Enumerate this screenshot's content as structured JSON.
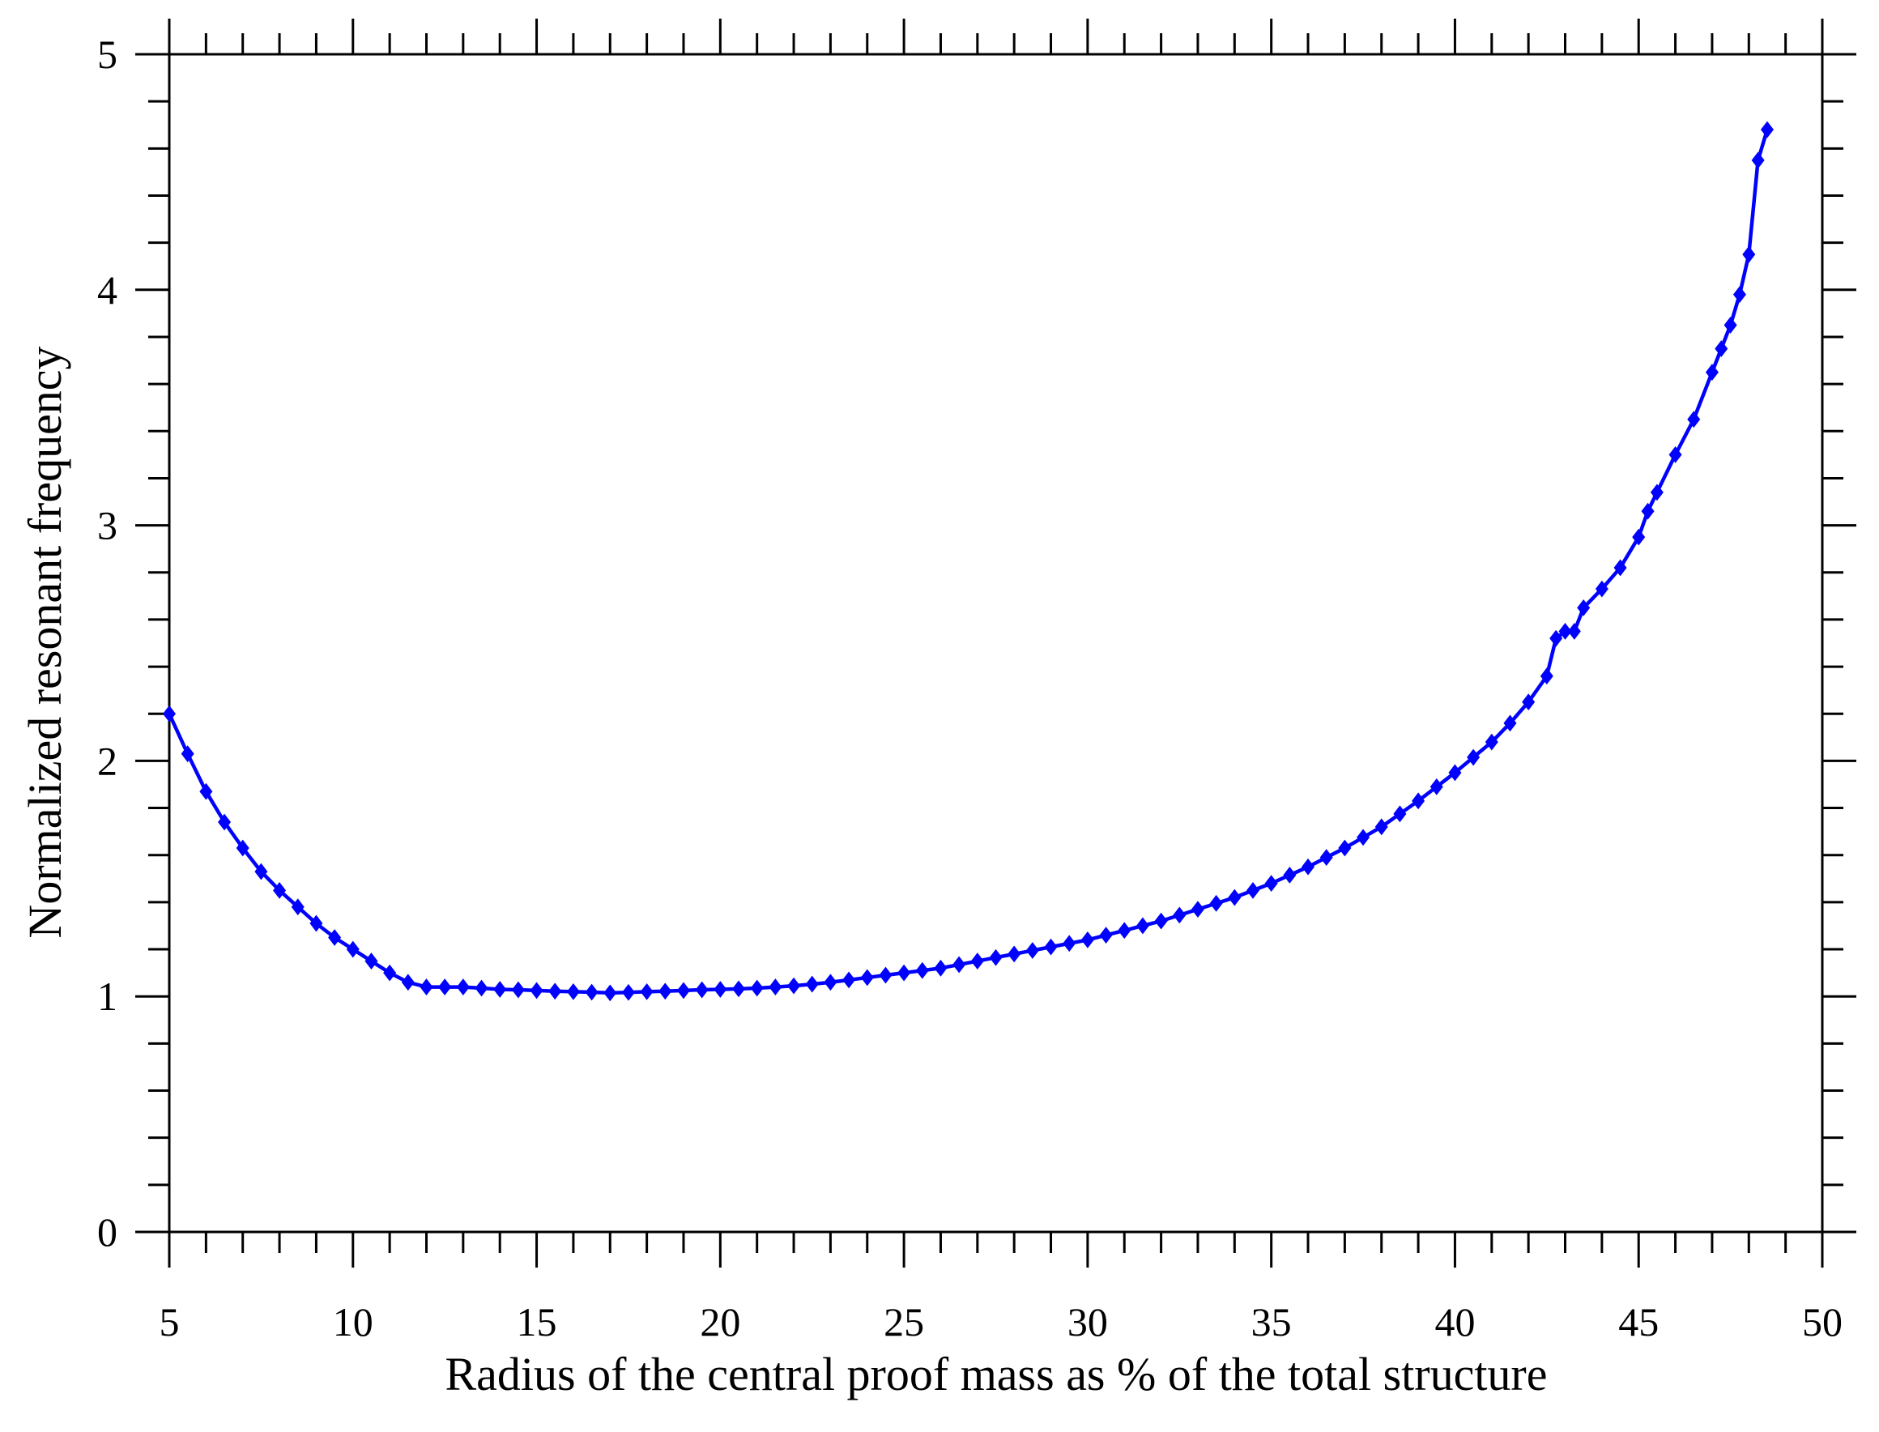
{
  "chart_data": {
    "type": "line",
    "xlabel": "Radius of the central proof mass as % of the total structure",
    "ylabel": "Normalized resonant frequency",
    "x": [
      5,
      5.5,
      6,
      6.5,
      7,
      7.5,
      8,
      8.5,
      9,
      9.5,
      10,
      10.5,
      11,
      11.5,
      12,
      12.5,
      13,
      13.5,
      14,
      14.5,
      15,
      15.5,
      16,
      16.5,
      17,
      17.5,
      18,
      18.5,
      19,
      19.5,
      20,
      20.5,
      21,
      21.5,
      22,
      22.5,
      23,
      23.5,
      24,
      24.5,
      25,
      25.5,
      26,
      26.5,
      27,
      27.5,
      28,
      28.5,
      29,
      29.5,
      30,
      30.5,
      31,
      31.5,
      32,
      32.5,
      33,
      33.5,
      34,
      34.5,
      35,
      35.5,
      36,
      36.5,
      37,
      37.5,
      38,
      38.5,
      39,
      39.5,
      40,
      40.5,
      41,
      41.5,
      42,
      42.5,
      42.75,
      43,
      43.25,
      43.5,
      44,
      44.5,
      45,
      45.25,
      45.5,
      46,
      46.5,
      47,
      47.25,
      47.5,
      47.75,
      48,
      48.25,
      48.5
    ],
    "series": [
      {
        "color": "#0000ff",
        "values": [
          2.2,
          2.03,
          1.87,
          1.74,
          1.63,
          1.53,
          1.45,
          1.38,
          1.31,
          1.25,
          1.2,
          1.15,
          1.1,
          1.06,
          1.04,
          1.04,
          1.04,
          1.035,
          1.03,
          1.028,
          1.025,
          1.022,
          1.02,
          1.018,
          1.015,
          1.017,
          1.02,
          1.022,
          1.025,
          1.028,
          1.03,
          1.032,
          1.035,
          1.04,
          1.045,
          1.052,
          1.06,
          1.07,
          1.08,
          1.09,
          1.1,
          1.11,
          1.12,
          1.135,
          1.15,
          1.165,
          1.18,
          1.195,
          1.21,
          1.225,
          1.24,
          1.26,
          1.28,
          1.3,
          1.32,
          1.345,
          1.37,
          1.395,
          1.42,
          1.45,
          1.48,
          1.515,
          1.55,
          1.59,
          1.63,
          1.675,
          1.72,
          1.775,
          1.83,
          1.89,
          1.95,
          2.015,
          2.08,
          2.16,
          2.25,
          2.36,
          2.52,
          2.55,
          2.55,
          2.65,
          2.73,
          2.82,
          2.95,
          3.06,
          3.14,
          3.3,
          3.45,
          3.65,
          3.75,
          3.85,
          3.98,
          4.15,
          4.55,
          4.68
        ]
      }
    ],
    "xlim": [
      5,
      50
    ],
    "xticks": [
      5,
      10,
      15,
      20,
      25,
      30,
      35,
      40,
      45,
      50
    ],
    "ylim": [
      0,
      5
    ],
    "yticks": [
      0,
      1,
      2,
      3,
      4,
      5
    ],
    "grid": false
  }
}
